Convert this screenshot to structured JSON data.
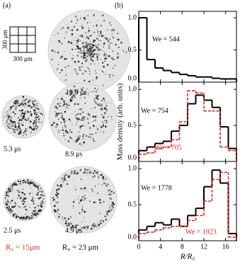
{
  "figure": {
    "panel_a": {
      "label": "(a)",
      "scale_vertical": "300 μm",
      "scale_horizontal": "300 μm",
      "times": [
        "10.9 μs",
        "5.3 μs",
        "8.9 μs",
        "2.5 μs",
        "4.9 μs"
      ],
      "radius_small": "R₀ = 15μm",
      "radius_large": "R₀ = 23 μm"
    },
    "panel_b_label": "(b)"
  },
  "chart_data": [
    {
      "type": "histogram",
      "bins": [
        0,
        1.5,
        3,
        4.5,
        6,
        7.5,
        9,
        10.5,
        12,
        13.5,
        15,
        16.5,
        18
      ],
      "xlim": [
        0,
        18
      ],
      "xticks": [
        0,
        4,
        8,
        12,
        16
      ],
      "ylim": [
        0,
        1.1
      ],
      "yticks": [
        {
          "value": 0,
          "label": "0.0"
        },
        {
          "value": 0.5,
          "label": "0.5"
        },
        {
          "value": 1,
          "label": "1.0"
        }
      ],
      "series": [
        {
          "name": "We = 544",
          "color": "#000000",
          "dash": false,
          "values": [
            1.0,
            0.35,
            0.22,
            0.18,
            0.15,
            0.12,
            0.1,
            0.08,
            0.08,
            0.06,
            0.05,
            0.05
          ]
        }
      ]
    },
    {
      "type": "histogram",
      "bins": [
        0,
        1.5,
        3,
        4.5,
        6,
        7.5,
        9,
        10.5,
        12,
        13.5,
        15,
        16.5,
        18
      ],
      "xlim": [
        0,
        18
      ],
      "xticks": [
        0,
        4,
        8,
        12,
        16
      ],
      "ylim": [
        0,
        1.1
      ],
      "yticks": [
        {
          "value": 0,
          "label": "0.0"
        },
        {
          "value": 0.5,
          "label": "0.5"
        },
        {
          "value": 1,
          "label": "1.0"
        }
      ],
      "ylabel": "Mass density (arb. units)",
      "series": [
        {
          "name": "We = 754",
          "color": "#000000",
          "dash": false,
          "values": [
            0.15,
            0.2,
            0.25,
            0.28,
            0.42,
            0.5,
            0.8,
            0.92,
            0.85,
            0.75,
            0.48,
            0.18
          ]
        },
        {
          "name": "We = 705",
          "color": "#e8251f",
          "dash": true,
          "values": [
            0.1,
            0.12,
            0.18,
            0.2,
            0.3,
            0.55,
            0.98,
            0.95,
            0.7,
            0.7,
            0.2,
            0.15
          ]
        }
      ]
    },
    {
      "type": "histogram",
      "bins": [
        0,
        1.5,
        3,
        4.5,
        6,
        7.5,
        9,
        10.5,
        12,
        13.5,
        15,
        16.5,
        18
      ],
      "xlim": [
        0,
        18
      ],
      "xticks": [
        0,
        4,
        8,
        12,
        16
      ],
      "ylim": [
        0,
        1.1
      ],
      "yticks": [
        {
          "value": 0,
          "label": "0.0"
        },
        {
          "value": 0.5,
          "label": "0.5"
        },
        {
          "value": 1,
          "label": "1.0"
        }
      ],
      "xlabel": "R/R₀",
      "series": [
        {
          "name": "We = 1778",
          "color": "#000000",
          "dash": false,
          "values": [
            0.15,
            0.2,
            0.25,
            0.22,
            0.3,
            0.2,
            0.35,
            0.45,
            0.75,
            0.98,
            0.8,
            0.1
          ]
        },
        {
          "name": "We = 1923",
          "color": "#e8251f",
          "dash": true,
          "values": [
            0.1,
            0.12,
            0.15,
            0.18,
            0.2,
            0.2,
            0.28,
            0.35,
            0.55,
            0.85,
            0.95,
            0.05
          ]
        }
      ]
    }
  ]
}
